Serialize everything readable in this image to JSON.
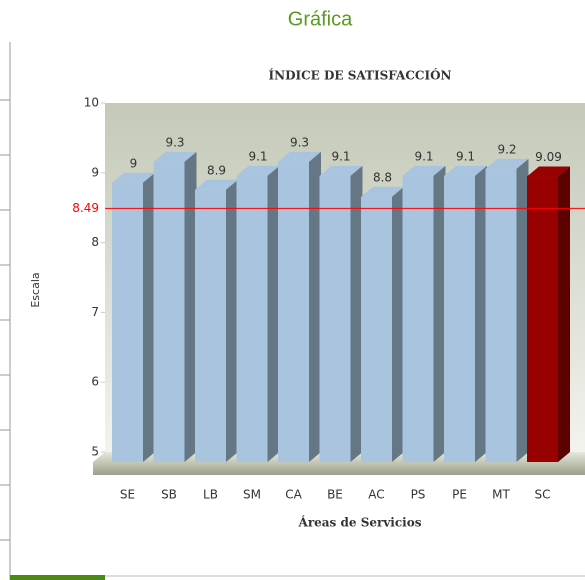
{
  "header": {
    "title": "Gráfica"
  },
  "chart_data": {
    "type": "bar",
    "title": "ÍNDICE DE SATISFACCIÓN",
    "xlabel": "Áreas de Servicios",
    "ylabel": "Escala",
    "categories": [
      "SE",
      "SB",
      "LB",
      "SM",
      "CA",
      "BE",
      "AC",
      "PS",
      "PE",
      "MT",
      "SC"
    ],
    "values": [
      9,
      9.3,
      8.9,
      9.1,
      9.3,
      9.1,
      8.8,
      9.1,
      9.1,
      9.2,
      9.09
    ],
    "colors": [
      "#a9c4de",
      "#a9c4de",
      "#a9c4de",
      "#a9c4de",
      "#a9c4de",
      "#a9c4de",
      "#a9c4de",
      "#a9c4de",
      "#a9c4de",
      "#a9c4de",
      "#990000"
    ],
    "ylim": [
      5,
      10
    ],
    "yticks": [
      5,
      6,
      7,
      8,
      9,
      10
    ],
    "grid": false,
    "trendlines": [
      {
        "value": 8.49,
        "color": "#ff0000"
      }
    ]
  }
}
